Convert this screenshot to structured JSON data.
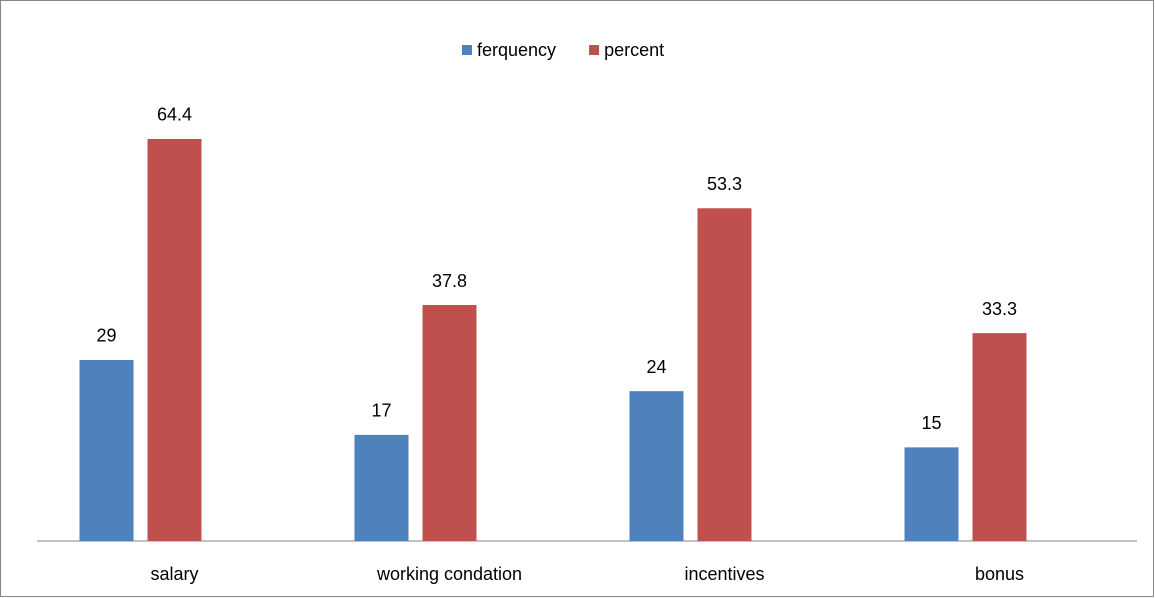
{
  "chart_data": {
    "type": "bar",
    "categories": [
      "salary",
      "working condation",
      "incentives",
      "bonus"
    ],
    "series": [
      {
        "name": "ferquency",
        "color": "#4f81bd",
        "values": [
          29,
          17,
          24,
          15
        ]
      },
      {
        "name": "percent",
        "color": "#c0504d",
        "values": [
          64.4,
          37.8,
          53.3,
          33.3
        ]
      }
    ],
    "ylim": [
      0,
      70
    ],
    "legend": "top"
  }
}
